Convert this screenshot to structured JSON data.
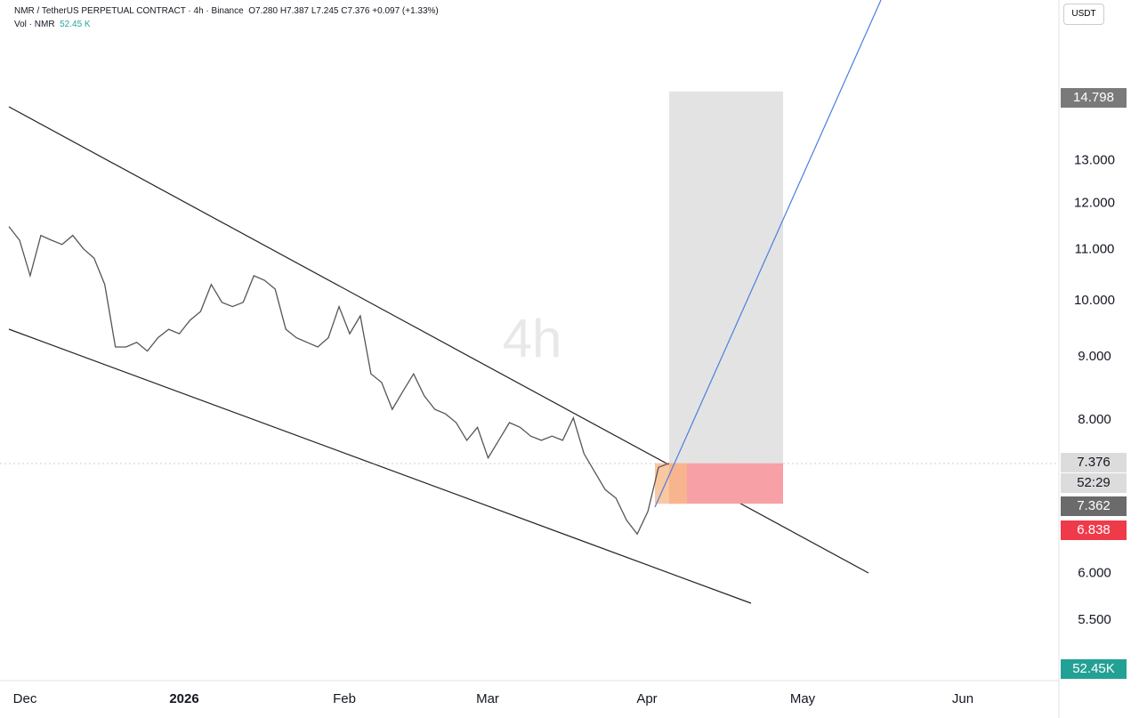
{
  "header": {
    "symbol": "NMR / TetherUS PERPETUAL CONTRACT · 4h · Binance",
    "open": "O7.280",
    "high": "H7.387",
    "low": "L7.245",
    "close": "C7.376",
    "change": "+0.097 (+1.33%)",
    "volume_label": "Vol · NMR",
    "volume_value": "52.45 K"
  },
  "currency_button": "USDT",
  "watermark": "4h",
  "chart": {
    "type": "line",
    "log_scale": true,
    "color": "#555555",
    "ylim": [
      4.91,
      17.56
    ],
    "yticks": [
      {
        "value": 5.5,
        "label": "5.500"
      },
      {
        "value": 6,
        "label": "6.000"
      },
      {
        "value": 8,
        "label": "8.000"
      },
      {
        "value": 9,
        "label": "9.000"
      },
      {
        "value": 10,
        "label": "10.000"
      },
      {
        "value": 11,
        "label": "11.000"
      },
      {
        "value": 12,
        "label": "12.000"
      },
      {
        "value": 13,
        "label": "13.000"
      }
    ],
    "x_labels": [
      "Dec",
      "2026",
      "Feb",
      "Mar",
      "Apr",
      "May",
      "Jun"
    ],
    "values": [
      11.49,
      11.2,
      10.48,
      11.3,
      11.2,
      11.11,
      11.3,
      11.02,
      10.83,
      10.31,
      9.17,
      9.17,
      9.25,
      9.1,
      9.33,
      9.48,
      9.4,
      9.64,
      9.8,
      10.31,
      9.97,
      9.89,
      9.97,
      10.48,
      10.39,
      10.22,
      9.48,
      9.33,
      9.25,
      9.17,
      9.33,
      9.89,
      9.4,
      9.72,
      8.72,
      8.58,
      8.16,
      8.44,
      8.72,
      8.37,
      8.16,
      8.09,
      7.96,
      7.7,
      7.89,
      7.45,
      7.7,
      7.96,
      7.89,
      7.76,
      7.7,
      7.76,
      7.7,
      8.03,
      7.51,
      7.26,
      7.02,
      6.91,
      6.63,
      6.46,
      6.74,
      7.32,
      7.376
    ],
    "position": {
      "target": 14.798,
      "entry": 7.376,
      "stop": 6.838
    },
    "countdown": "52:29",
    "mark_price": 7.362,
    "volume_tag": "52.45K"
  }
}
